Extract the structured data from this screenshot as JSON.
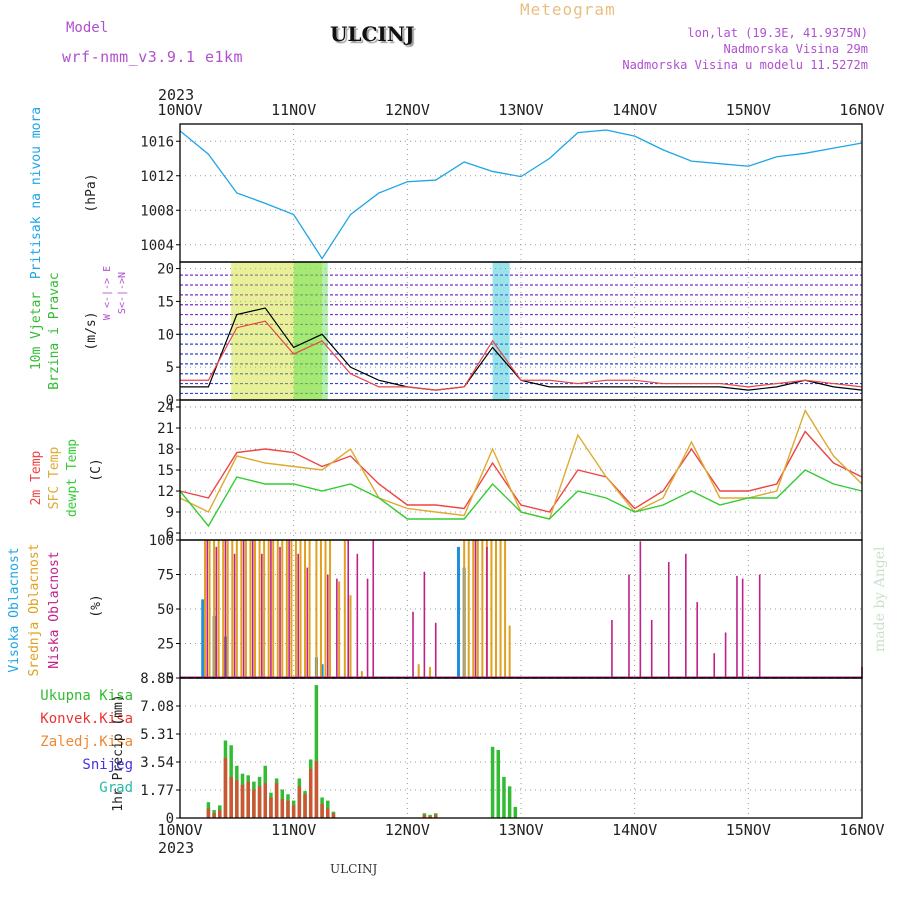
{
  "header": {
    "model_label": "Model",
    "model_name": "wrf-nmm_v3.9.1  e1km",
    "station": "ULCINJ",
    "meteogram": "Meteogram",
    "lonlat": "lon,lat (19.3E, 41.9375N)",
    "altitude": "Nadmorska Visina 29m",
    "model_altitude": "Nadmorska Visina u modelu 11.5272m",
    "footer_station": "ULCINJ",
    "credit": "made by Angel"
  },
  "colors": {
    "pressure": "#1fa5e6",
    "temp2m": "#ee4444",
    "sfc": "#ddaa33",
    "dewpt": "#33cc33",
    "high_cloud": "#1f8fe0",
    "mid_cloud": "#e0a020",
    "low_cloud": "#c0208a",
    "total_precip": "#33bb33",
    "conv_precip": "#cc5533",
    "purple": "#b050d0"
  },
  "chart_data": [
    {
      "type": "line",
      "panel": "pressure",
      "year": "2023",
      "x_tick_labels": [
        "10NOV",
        "11NOV",
        "12NOV",
        "13NOV",
        "14NOV",
        "15NOV",
        "16NOV"
      ],
      "ylabel": "Pritisak na nivou mora",
      "unit": "(hPa)",
      "ylim": [
        1002,
        1018
      ],
      "yticks": [
        1004,
        1008,
        1012,
        1016
      ],
      "x": [
        0,
        0.25,
        0.5,
        0.75,
        1,
        1.25,
        1.5,
        1.75,
        2,
        2.25,
        2.5,
        2.75,
        3,
        3.25,
        3.5,
        3.75,
        4,
        4.25,
        4.5,
        4.75,
        5,
        5.25,
        5.5,
        5.75,
        6
      ],
      "series": [
        {
          "values": [
            1017.2,
            1014.5,
            1010,
            1008.8,
            1007.5,
            1002.4,
            1007.5,
            1010,
            1011.3,
            1011.5,
            1013.6,
            1012.5,
            1011.9,
            1014,
            1017,
            1017.3,
            1016.6,
            1015,
            1013.7,
            1013.4,
            1013.1,
            1014.2,
            1014.6,
            1015.2,
            1015.8
          ]
        }
      ]
    },
    {
      "type": "line",
      "panel": "wind",
      "ylabel": [
        "10m Vjetar",
        "Brzina i Pravac"
      ],
      "unit": "(m/s)",
      "compass": "W <-|-> E",
      "compass_ns": "S<-|->N",
      "ylim": [
        0,
        21
      ],
      "yticks": [
        0,
        5,
        10,
        15,
        20
      ],
      "x": [
        0,
        0.25,
        0.5,
        0.75,
        1,
        1.25,
        1.5,
        1.75,
        2,
        2.25,
        2.5,
        2.75,
        3,
        3.25,
        3.5,
        3.75,
        4,
        4.25,
        4.5,
        4.75,
        5,
        5.25,
        5.5,
        5.75,
        6
      ],
      "series": [
        {
          "values": [
            2,
            2,
            13,
            14,
            8,
            10,
            5,
            3,
            2,
            1.5,
            2,
            8,
            3,
            2,
            2,
            2,
            2,
            2,
            2,
            2,
            1.5,
            2,
            3,
            2,
            1.5
          ]
        },
        {
          "values": [
            3,
            3,
            11,
            12,
            7,
            9,
            4,
            2,
            2,
            1.5,
            2,
            9,
            3,
            3,
            2.5,
            3,
            3,
            2.5,
            2.5,
            2.5,
            2,
            2.5,
            3,
            2.5,
            2
          ]
        }
      ]
    },
    {
      "type": "line",
      "panel": "temperature",
      "labels": [
        "2m Temp",
        "SFC Temp",
        "dewpt Temp"
      ],
      "unit": "(C)",
      "ylim": [
        5,
        25
      ],
      "yticks": [
        6,
        9,
        12,
        15,
        18,
        21,
        24
      ],
      "x": [
        0,
        0.25,
        0.5,
        0.75,
        1,
        1.25,
        1.5,
        1.75,
        2,
        2.25,
        2.5,
        2.75,
        3,
        3.25,
        3.5,
        3.75,
        4,
        4.25,
        4.5,
        4.75,
        5,
        5.25,
        5.5,
        5.75,
        6
      ],
      "series": [
        {
          "name": "2m Temp",
          "values": [
            12,
            11,
            17.5,
            18,
            17.5,
            15.5,
            17,
            13,
            10,
            10,
            9.5,
            16,
            10,
            9,
            15,
            14,
            9.5,
            12,
            18,
            12,
            12,
            13,
            20.5,
            16,
            14
          ]
        },
        {
          "name": "SFC Temp",
          "values": [
            11,
            9,
            17,
            16,
            15.5,
            15,
            18,
            11,
            9.5,
            9,
            8.5,
            18,
            9,
            8,
            20,
            14,
            9,
            11,
            19,
            11,
            11,
            12,
            23.5,
            17,
            13
          ]
        },
        {
          "name": "dewpt Temp",
          "values": [
            12,
            7,
            14,
            13,
            13,
            12,
            13,
            11,
            8,
            8,
            8,
            13,
            9,
            8,
            12,
            11,
            9,
            10,
            12,
            10,
            11,
            11,
            15,
            13,
            12
          ]
        }
      ]
    },
    {
      "type": "bar",
      "panel": "clouds",
      "labels": [
        "Visoka Oblacnost",
        "Srednja Oblacnost",
        "Niska Oblacnost"
      ],
      "unit": "(%)",
      "ylim": [
        0,
        100
      ],
      "yticks": [
        0,
        25,
        50,
        75,
        100
      ],
      "series": [
        {
          "name": "Visoka Oblacnost",
          "x": [
            0.2,
            0.3,
            0.4,
            1.2,
            1.25,
            2.45,
            2.5
          ],
          "values": [
            57,
            45,
            30,
            15,
            10,
            95,
            80
          ]
        },
        {
          "name": "Srednja Oblacnost",
          "x": [
            0.22,
            0.26,
            0.3,
            0.34,
            0.38,
            0.42,
            0.46,
            0.5,
            0.54,
            0.58,
            0.62,
            0.66,
            0.7,
            0.74,
            0.78,
            0.82,
            0.86,
            0.9,
            0.94,
            0.98,
            1.02,
            1.06,
            1.1,
            1.14,
            1.2,
            1.24,
            1.28,
            1.32,
            1.4,
            1.45,
            1.5,
            1.6,
            2.1,
            2.2,
            2.5,
            2.54,
            2.58,
            2.62,
            2.66,
            2.7,
            2.74,
            2.78,
            2.82,
            2.86,
            2.9
          ],
          "values": [
            100,
            100,
            100,
            100,
            100,
            100,
            100,
            100,
            100,
            100,
            100,
            100,
            100,
            100,
            100,
            100,
            100,
            100,
            100,
            100,
            100,
            100,
            100,
            100,
            100,
            100,
            100,
            100,
            70,
            100,
            60,
            5,
            10,
            8,
            100,
            100,
            100,
            100,
            100,
            100,
            100,
            100,
            100,
            100,
            38
          ]
        },
        {
          "name": "Niska Oblacnost",
          "x": [
            0.24,
            0.32,
            0.4,
            0.48,
            0.56,
            0.64,
            0.72,
            0.8,
            0.88,
            0.96,
            1.04,
            1.12,
            1.3,
            1.38,
            1.48,
            1.56,
            1.65,
            1.7,
            2.05,
            2.15,
            2.25,
            2.6,
            2.7,
            3.8,
            3.95,
            4.05,
            4.15,
            4.3,
            4.45,
            4.55,
            4.7,
            4.8,
            4.9,
            4.95,
            5.1,
            6.0
          ],
          "values": [
            100,
            95,
            100,
            90,
            100,
            100,
            90,
            100,
            95,
            100,
            90,
            80,
            75,
            72,
            100,
            90,
            72,
            100,
            48,
            77,
            40,
            100,
            95,
            42,
            75,
            99,
            42,
            84,
            90,
            55,
            18,
            33,
            74,
            72,
            75,
            8
          ]
        }
      ]
    },
    {
      "type": "bar",
      "panel": "precipitation",
      "labels": [
        "Ukupna Kisa",
        "Konvek.Kisa",
        "Zaledj.Kisa",
        "Snijeg",
        "Grad"
      ],
      "unit": "1hr Precip (mm)",
      "ylim": [
        0,
        8.85
      ],
      "yticks": [
        0,
        1.77,
        3.54,
        5.31,
        7.08,
        8.85
      ],
      "series": [
        {
          "name": "Ukupna Kisa",
          "x": [
            0.25,
            0.3,
            0.35,
            0.4,
            0.45,
            0.5,
            0.55,
            0.6,
            0.65,
            0.7,
            0.75,
            0.8,
            0.85,
            0.9,
            0.95,
            1.0,
            1.05,
            1.1,
            1.15,
            1.2,
            1.25,
            1.3,
            1.35,
            2.15,
            2.2,
            2.25,
            2.75,
            2.8,
            2.85,
            2.9,
            2.95
          ],
          "values": [
            1.0,
            0.5,
            0.8,
            4.9,
            4.6,
            3.3,
            2.8,
            2.7,
            2.3,
            2.6,
            3.3,
            1.6,
            2.5,
            1.8,
            1.5,
            1.1,
            2.5,
            1.7,
            3.7,
            8.4,
            1.3,
            1.1,
            0.4,
            0.3,
            0.2,
            0.3,
            4.5,
            4.3,
            2.6,
            2.0,
            0.7
          ]
        },
        {
          "name": "Konvek.Kisa",
          "x": [
            0.25,
            0.3,
            0.35,
            0.4,
            0.45,
            0.5,
            0.55,
            0.6,
            0.65,
            0.7,
            0.75,
            0.8,
            0.85,
            0.9,
            0.95,
            1.0,
            1.05,
            1.1,
            1.15,
            1.2,
            1.25,
            1.3,
            1.35,
            2.15,
            2.2,
            2.25
          ],
          "values": [
            0.6,
            0.3,
            0.5,
            3.8,
            2.6,
            2.4,
            2.1,
            2.3,
            1.8,
            2.0,
            2.2,
            1.3,
            2.2,
            1.2,
            1.1,
            0.8,
            2.0,
            1.5,
            3.1,
            3.6,
            0.9,
            0.6,
            0.3,
            0.2,
            0.1,
            0.2
          ]
        }
      ]
    }
  ]
}
